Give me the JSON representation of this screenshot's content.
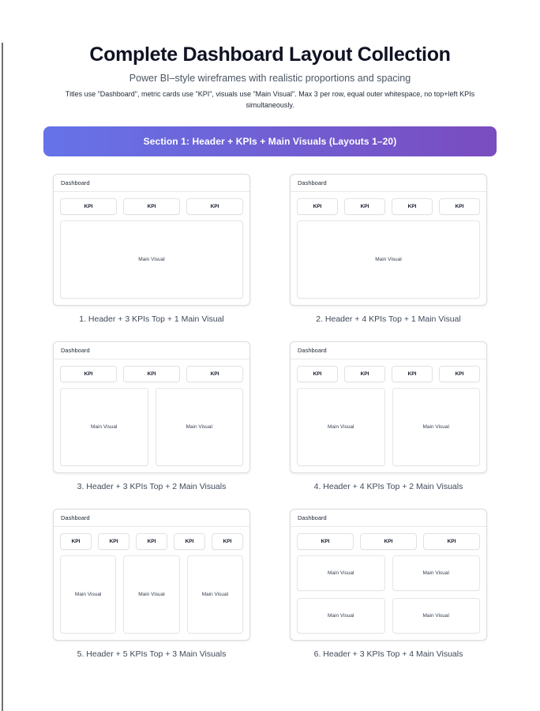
{
  "page": {
    "title": "Complete Dashboard Layout Collection",
    "subtitle": "Power BI–style wireframes with realistic proportions and spacing",
    "description": "Titles use \"Dashboard\", metric cards use \"KPI\", visuals use \"Main Visual\". Max 3 per row, equal outer whitespace, no top+left KPIs simultaneously."
  },
  "section": {
    "label": "Section 1: Header + KPIs + Main Visuals (Layouts 1–20)"
  },
  "colors": {
    "banner_gradient_start": "#6673e8",
    "banner_gradient_end": "#7a4cc0",
    "banner_text": "#ffffff",
    "card_border": "#dcdcdc",
    "inner_border": "#e2e2e2",
    "caption_text": "#3f4a5a",
    "edge_line": "#707070"
  },
  "wireframes": [
    {
      "header": "Dashboard",
      "kpi_label": "KPI",
      "kpi_count": 3,
      "visual_label": "Main Visual",
      "visual_count": 1,
      "visual_cols": 1,
      "caption": "1. Header + 3 KPIs Top + 1 Main Visual"
    },
    {
      "header": "Dashboard",
      "kpi_label": "KPI",
      "kpi_count": 4,
      "visual_label": "Main Visual",
      "visual_count": 1,
      "visual_cols": 1,
      "caption": "2. Header + 4 KPIs Top + 1 Main Visual"
    },
    {
      "header": "Dashboard",
      "kpi_label": "KPI",
      "kpi_count": 3,
      "visual_label": "Main Visual",
      "visual_count": 2,
      "visual_cols": 2,
      "caption": "3. Header + 3 KPIs Top + 2 Main Visuals"
    },
    {
      "header": "Dashboard",
      "kpi_label": "KPI",
      "kpi_count": 4,
      "visual_label": "Main Visual",
      "visual_count": 2,
      "visual_cols": 2,
      "caption": "4. Header + 4 KPIs Top + 2 Main Visuals"
    },
    {
      "header": "Dashboard",
      "kpi_label": "KPI",
      "kpi_count": 5,
      "visual_label": "Main Visual",
      "visual_count": 3,
      "visual_cols": 3,
      "caption": "5. Header + 5 KPIs Top + 3 Main Visuals"
    },
    {
      "header": "Dashboard",
      "kpi_label": "KPI",
      "kpi_count": 3,
      "visual_label": "Main Visual",
      "visual_count": 4,
      "visual_cols": 2,
      "caption": "6. Header + 3 KPIs Top + 4 Main Visuals"
    }
  ]
}
